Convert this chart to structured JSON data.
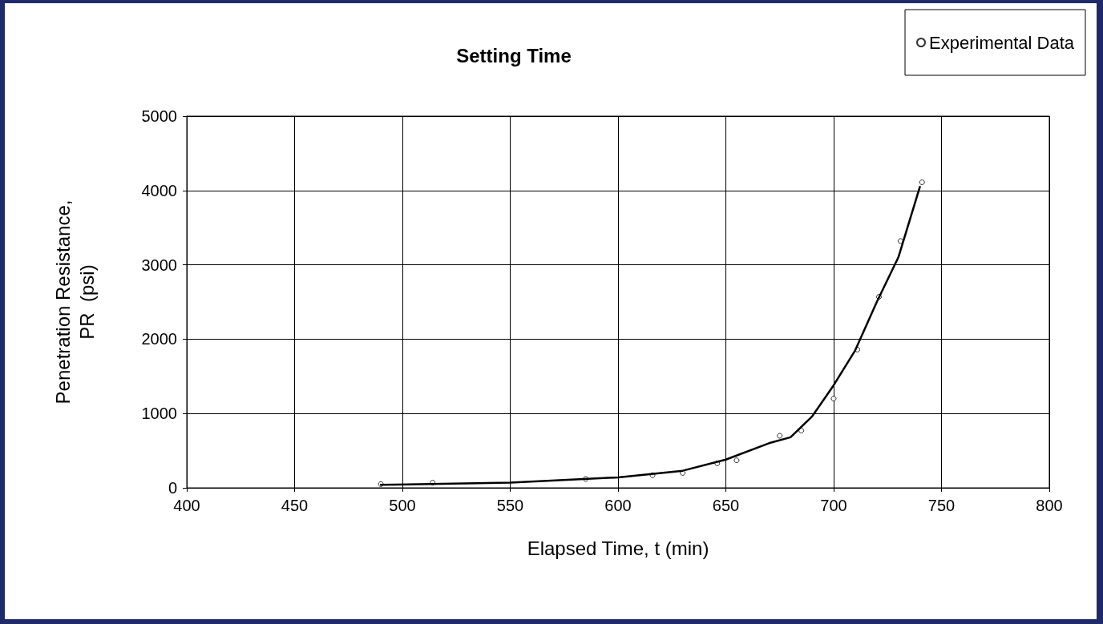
{
  "chart_data": {
    "type": "scatter",
    "title": "Setting Time",
    "xlabel": "Elapsed Time, t (min)",
    "ylabel": "Penetration Resistance,\nPR  (psi)",
    "xlim": [
      400,
      800
    ],
    "xticks": [
      400,
      450,
      500,
      550,
      600,
      650,
      700,
      750,
      800
    ],
    "ylim": [
      0,
      5000
    ],
    "yticks": [
      0,
      1000,
      2000,
      3000,
      4000,
      5000
    ],
    "grid": true,
    "legend": "top right",
    "series": [
      {
        "name": "Experimental Data",
        "marker": "circle",
        "color": "#000000",
        "x": [
          490,
          514,
          585,
          616,
          630,
          646,
          655,
          675,
          685,
          700,
          711,
          721,
          731,
          741
        ],
        "values": [
          50,
          70,
          120,
          170,
          200,
          330,
          370,
          700,
          770,
          1200,
          1860,
          2570,
          3320,
          4110
        ]
      },
      {
        "type": "line",
        "marker": "none",
        "line_style": "solid",
        "color": "#000000",
        "x": [
          490,
          550,
          600,
          630,
          650,
          670,
          680,
          690,
          700,
          710,
          720,
          730,
          740
        ],
        "values": [
          40,
          70,
          140,
          230,
          380,
          600,
          680,
          960,
          1380,
          1850,
          2500,
          3100,
          4050
        ]
      }
    ]
  }
}
